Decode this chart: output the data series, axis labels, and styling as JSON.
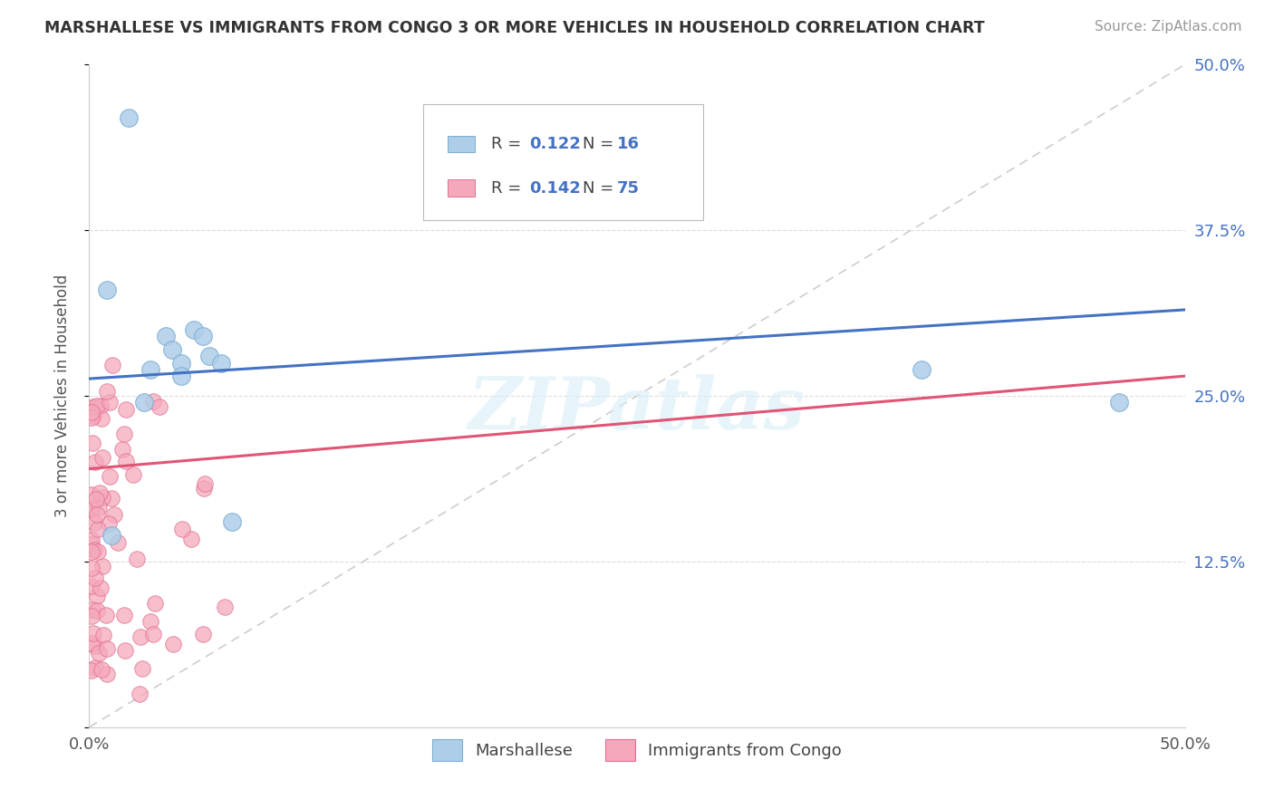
{
  "title": "MARSHALLESE VS IMMIGRANTS FROM CONGO 3 OR MORE VEHICLES IN HOUSEHOLD CORRELATION CHART",
  "source": "Source: ZipAtlas.com",
  "ylabel": "3 or more Vehicles in Household",
  "xlim": [
    0.0,
    0.5
  ],
  "ylim": [
    0.0,
    0.5
  ],
  "color_marshallese_fill": "#aecde8",
  "color_marshallese_edge": "#7aaed4",
  "color_congo_fill": "#f5a8bc",
  "color_congo_edge": "#e07090",
  "color_line_marshallese": "#4472c4",
  "color_line_congo": "#e05575",
  "color_diag": "#c8c8c8",
  "color_right_tick": "#4472c4",
  "watermark_text": "ZIPatlas",
  "watermark_color": "#d8eef8",
  "legend_r1": "R = 0.122",
  "legend_n1": "N = 16",
  "legend_r2": "R = 0.142",
  "legend_n2": "N = 75",
  "legend_color_text": "#4472c4",
  "marsh_line_x": [
    0.0,
    0.5
  ],
  "marsh_line_y": [
    0.263,
    0.315
  ],
  "congo_line_x": [
    0.0,
    0.5
  ],
  "congo_line_y": [
    0.195,
    0.265
  ],
  "marsh_x": [
    0.018,
    0.008,
    0.035,
    0.038,
    0.048,
    0.052,
    0.042,
    0.025,
    0.028,
    0.042,
    0.055,
    0.06,
    0.01,
    0.38,
    0.47,
    0.065
  ],
  "marsh_y": [
    0.46,
    0.33,
    0.295,
    0.285,
    0.3,
    0.295,
    0.275,
    0.245,
    0.27,
    0.265,
    0.28,
    0.275,
    0.145,
    0.27,
    0.245,
    0.155
  ],
  "grid_color": "#dddddd",
  "grid_yticks": [
    0.125,
    0.25,
    0.375
  ],
  "right_ytick_vals": [
    0.125,
    0.25,
    0.375,
    0.5
  ],
  "right_ytick_labels": [
    "12.5%",
    "25.0%",
    "37.5%",
    "50.0%"
  ]
}
